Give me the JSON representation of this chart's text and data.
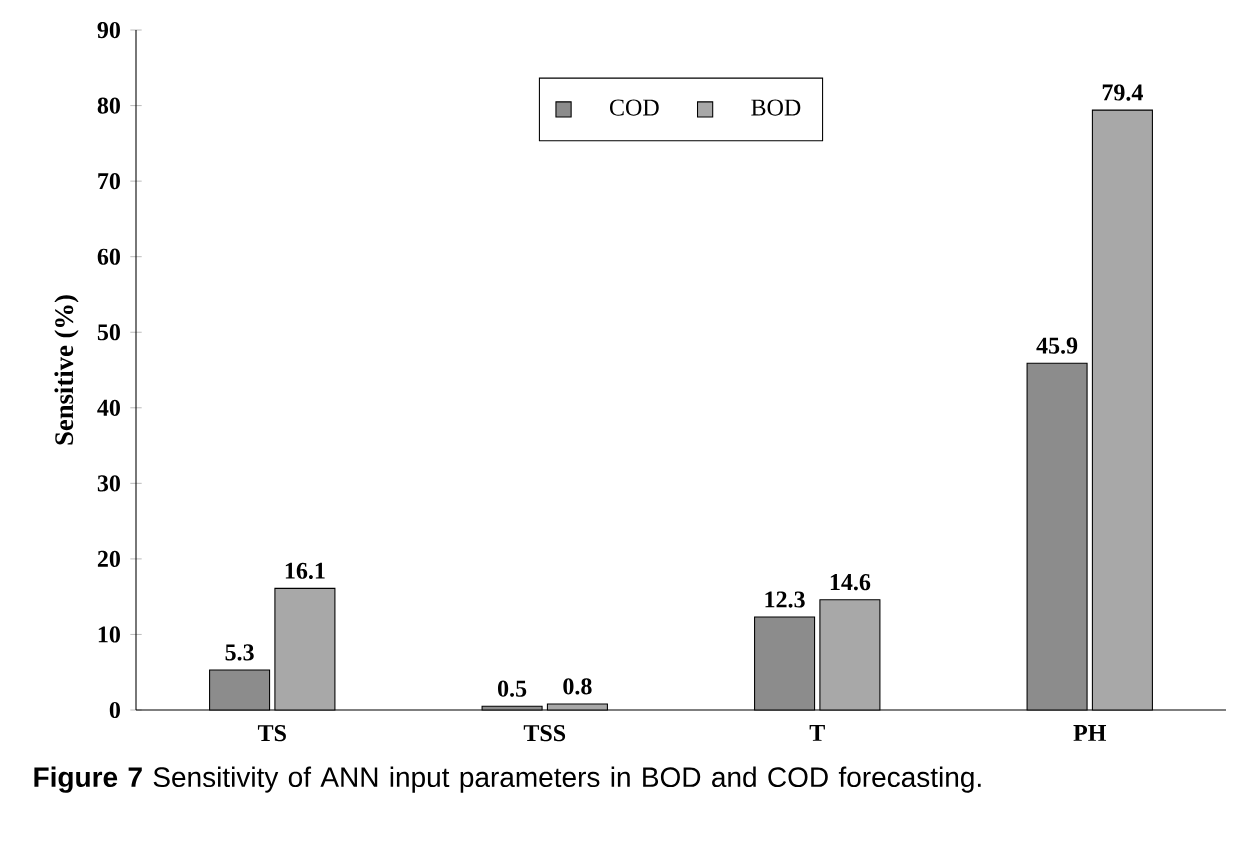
{
  "chart_data": {
    "type": "bar",
    "categories": [
      "TS",
      "TSS",
      "T",
      "PH"
    ],
    "series": [
      {
        "name": "COD",
        "color": "#8c8c8c",
        "values": [
          5.3,
          0.5,
          12.3,
          45.9
        ]
      },
      {
        "name": "BOD",
        "color": "#a8a8a8",
        "values": [
          16.1,
          0.8,
          14.6,
          79.4
        ]
      }
    ],
    "ylabel": "Sensitive (%)",
    "ylim": [
      0,
      90
    ],
    "yticks": [
      0,
      10,
      20,
      30,
      40,
      50,
      60,
      70,
      80,
      90
    ],
    "data_labels": true,
    "legend": "top",
    "grid": false,
    "annotations": [
      "**Figure 7** Sensitivity of ANN input parameters in BOD and COD forecasting."
    ]
  }
}
